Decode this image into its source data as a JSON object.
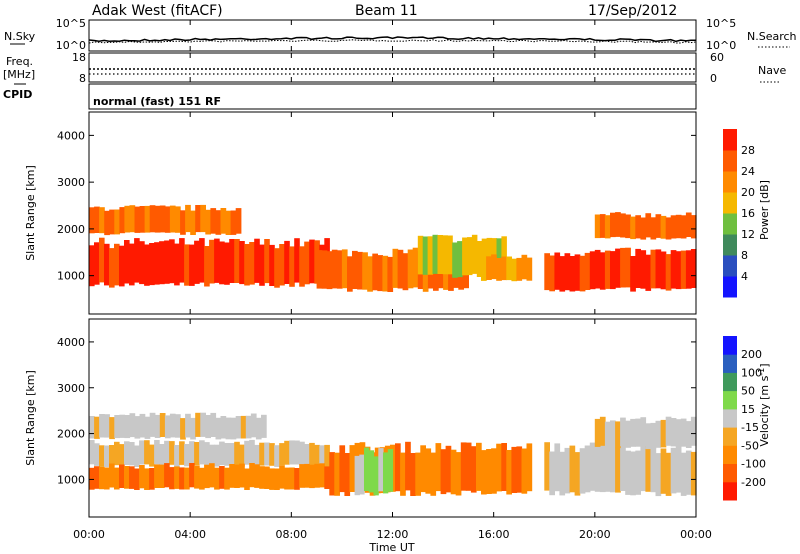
{
  "header": {
    "station": "Adak West (fitACF)",
    "beam": "Beam 11",
    "date": "17/Sep/2012"
  },
  "left_labels": {
    "nsky": "N.Sky",
    "freq": "Freq.",
    "freq_unit": "[MHz]",
    "cpid": "CPID"
  },
  "right_labels": {
    "nsearch": "N.Search",
    "nave": "Nave"
  },
  "noise_panel": {
    "left_ticks": [
      "10^5",
      "10^0"
    ],
    "right_ticks": [
      "10^5",
      "10^0"
    ]
  },
  "freq_panel": {
    "left_ticks": [
      "18",
      "8"
    ],
    "right_ticks": [
      "60",
      "0"
    ]
  },
  "cpid_text": "normal (fast) 151 RF",
  "colors": {
    "power": [
      "#1414ff",
      "#2a4fbf",
      "#3f8a5c",
      "#6fbf3f",
      "#f5b800",
      "#ff8a00",
      "#ff5a00",
      "#ff1a00"
    ],
    "velocity": [
      "#ff1a00",
      "#ff5a00",
      "#ff8a00",
      "#f5a623",
      "#c8c8c8",
      "#7fd94a",
      "#3f9a5c",
      "#2a5fbf",
      "#1414ff"
    ]
  },
  "chart_data": [
    {
      "type": "heatmap",
      "name": "power",
      "ylabel": "Slant Range [km]",
      "ylim": [
        180,
        4500
      ],
      "yticks": [
        "1000",
        "2000",
        "3000",
        "4000"
      ],
      "xlim": [
        "00:00",
        "24:00"
      ],
      "colorbar": {
        "label": "Power [dB]",
        "ticks": [
          "28",
          "24",
          "20",
          "16",
          "12",
          "8",
          "4"
        ]
      },
      "bands": [
        {
          "t0": 0.0,
          "t1": 9.5,
          "r0": 800,
          "r1": 1700,
          "level": 7
        },
        {
          "t0": 0.0,
          "t1": 6.0,
          "r0": 1900,
          "r1": 2450,
          "level": 6
        },
        {
          "t0": 9.0,
          "t1": 15.0,
          "r0": 700,
          "r1": 1500,
          "level": 6
        },
        {
          "t0": 13.0,
          "t1": 16.5,
          "r0": 1000,
          "r1": 1800,
          "level": 4
        },
        {
          "t0": 15.5,
          "t1": 17.5,
          "r0": 900,
          "r1": 1400,
          "level": 5
        },
        {
          "t0": 18.0,
          "t1": 24.0,
          "r0": 700,
          "r1": 1500,
          "level": 7
        },
        {
          "t0": 20.0,
          "t1": 24.0,
          "r0": 1800,
          "r1": 2300,
          "level": 6
        }
      ]
    },
    {
      "type": "heatmap",
      "name": "velocity",
      "ylabel": "Slant Range [km]",
      "ylim": [
        180,
        4500
      ],
      "yticks": [
        "1000",
        "2000",
        "3000",
        "4000"
      ],
      "xlim": [
        "00:00",
        "24:00"
      ],
      "xticks": [
        "00:00",
        "04:00",
        "08:00",
        "12:00",
        "16:00",
        "20:00",
        "00:00"
      ],
      "xlabel": "Time UT",
      "colorbar": {
        "label": "Velocity [m s^-1]",
        "ticks": [
          "200",
          "100",
          "50",
          "15",
          "-15",
          "-50",
          "-100",
          "-200"
        ]
      },
      "bands": [
        {
          "t0": 0.0,
          "t1": 9.5,
          "r0": 1300,
          "r1": 1800,
          "level": 4
        },
        {
          "t0": 0.0,
          "t1": 7.0,
          "r0": 1900,
          "r1": 2400,
          "level": 4
        },
        {
          "t0": 0.0,
          "t1": 9.5,
          "r0": 800,
          "r1": 1300,
          "level": 2
        },
        {
          "t0": 9.5,
          "t1": 17.5,
          "r0": 700,
          "r1": 1700,
          "level": 2
        },
        {
          "t0": 10.5,
          "t1": 12.0,
          "r0": 700,
          "r1": 1600,
          "level": 5
        },
        {
          "t0": 18.0,
          "t1": 24.0,
          "r0": 700,
          "r1": 1700,
          "level": 4
        },
        {
          "t0": 20.0,
          "t1": 24.0,
          "r0": 1700,
          "r1": 2300,
          "level": 4
        }
      ]
    }
  ]
}
